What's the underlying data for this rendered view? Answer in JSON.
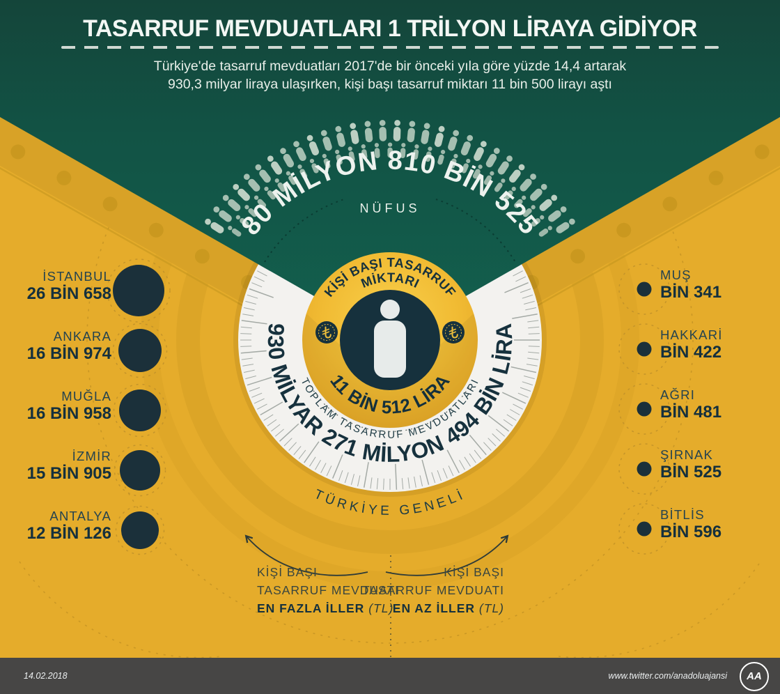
{
  "header": {
    "title": "TASARRUF MEVDUATLARI 1 TRİLYON LİRAYA GİDİYOR",
    "subtitle1": "Türkiye'de tasarruf mevduatları 2017'de bir önceki yıla göre yüzde 14,4 artarak",
    "subtitle2": "930,3 milyar liraya ulaşırken, kişi başı tasarruf miktarı 11 bin 500 lirayı aştı"
  },
  "gauge": {
    "population_text": "80 MİLYON 810 BİN 525",
    "population_label": "NÜFUS",
    "per_capita_line1": "KİŞİ BAŞI TASARRUF",
    "per_capita_line2": "MİKTARI",
    "per_capita_value": "11 BİN 512 LİRA",
    "total_value": "930 MİLYAR 271 MİLYON 494 BİN LİRA",
    "total_label": "TOPLAM TASARRUF MEVDUATLARI",
    "scope_label": "TÜRKİYE GENELİ"
  },
  "left_cities": [
    {
      "name": "İSTANBUL",
      "value": "26 BİN 658"
    },
    {
      "name": "ANKARA",
      "value": "16 BİN 974"
    },
    {
      "name": "MUĞLA",
      "value": "16 BİN 958"
    },
    {
      "name": "İZMİR",
      "value": "15 BİN 905"
    },
    {
      "name": "ANTALYA",
      "value": "12 BİN 126"
    }
  ],
  "right_cities": [
    {
      "name": "MUŞ",
      "value": "BİN 341"
    },
    {
      "name": "HAKKARİ",
      "value": "BİN 422"
    },
    {
      "name": "AĞRI",
      "value": "BİN 481"
    },
    {
      "name": "ŞIRNAK",
      "value": "BİN 525"
    },
    {
      "name": "BİTLİS",
      "value": "BİN 596"
    }
  ],
  "legend": {
    "left": {
      "line1": "KİŞİ BAŞI",
      "line2": "TASARRUF MEVDUATI",
      "line3": "EN FAZLA İLLER",
      "unit": "(TL)"
    },
    "right": {
      "line1": "KİŞİ BAŞI",
      "line2": "TASARRUF MEVDUATI",
      "line3": "EN AZ İLLER",
      "unit": "(TL)"
    }
  },
  "footer": {
    "date": "14.02.2018",
    "url": "www.twitter.com/anadoluajansi",
    "logo": "AA"
  },
  "colors": {
    "green": "#125345",
    "yellow": "#e5ac2b",
    "gold_band": "#d8a227",
    "navy": "#16313d",
    "ring_white": "#f3f2ef",
    "crowd_sage": "#a5bfb1",
    "footer_gray": "#474645"
  },
  "icons": [
    "person-icon",
    "lira-coin-icon",
    "aa-logo",
    "arrow-left-icon",
    "arrow-right-icon"
  ],
  "chart_data": {
    "type": "table",
    "title": "TASARRUF MEVDUATLARI 1 TRİLYON LİRAYA GİDİYOR",
    "population": 80810525,
    "per_capita_savings_tl": 11512,
    "total_savings_tl": 930271494000,
    "growth_percent": 14.4,
    "scope": "TÜRKİYE GENELİ",
    "highest_provinces": [
      {
        "name": "İSTANBUL",
        "value_tl": 26658
      },
      {
        "name": "ANKARA",
        "value_tl": 16974
      },
      {
        "name": "MUĞLA",
        "value_tl": 16958
      },
      {
        "name": "İZMİR",
        "value_tl": 15905
      },
      {
        "name": "ANTALYA",
        "value_tl": 12126
      }
    ],
    "lowest_provinces": [
      {
        "name": "MUŞ",
        "value_tl": 1341
      },
      {
        "name": "HAKKARİ",
        "value_tl": 1422
      },
      {
        "name": "AĞRI",
        "value_tl": 1481
      },
      {
        "name": "ŞIRNAK",
        "value_tl": 1525
      },
      {
        "name": "BİTLİS",
        "value_tl": 1596
      }
    ]
  }
}
